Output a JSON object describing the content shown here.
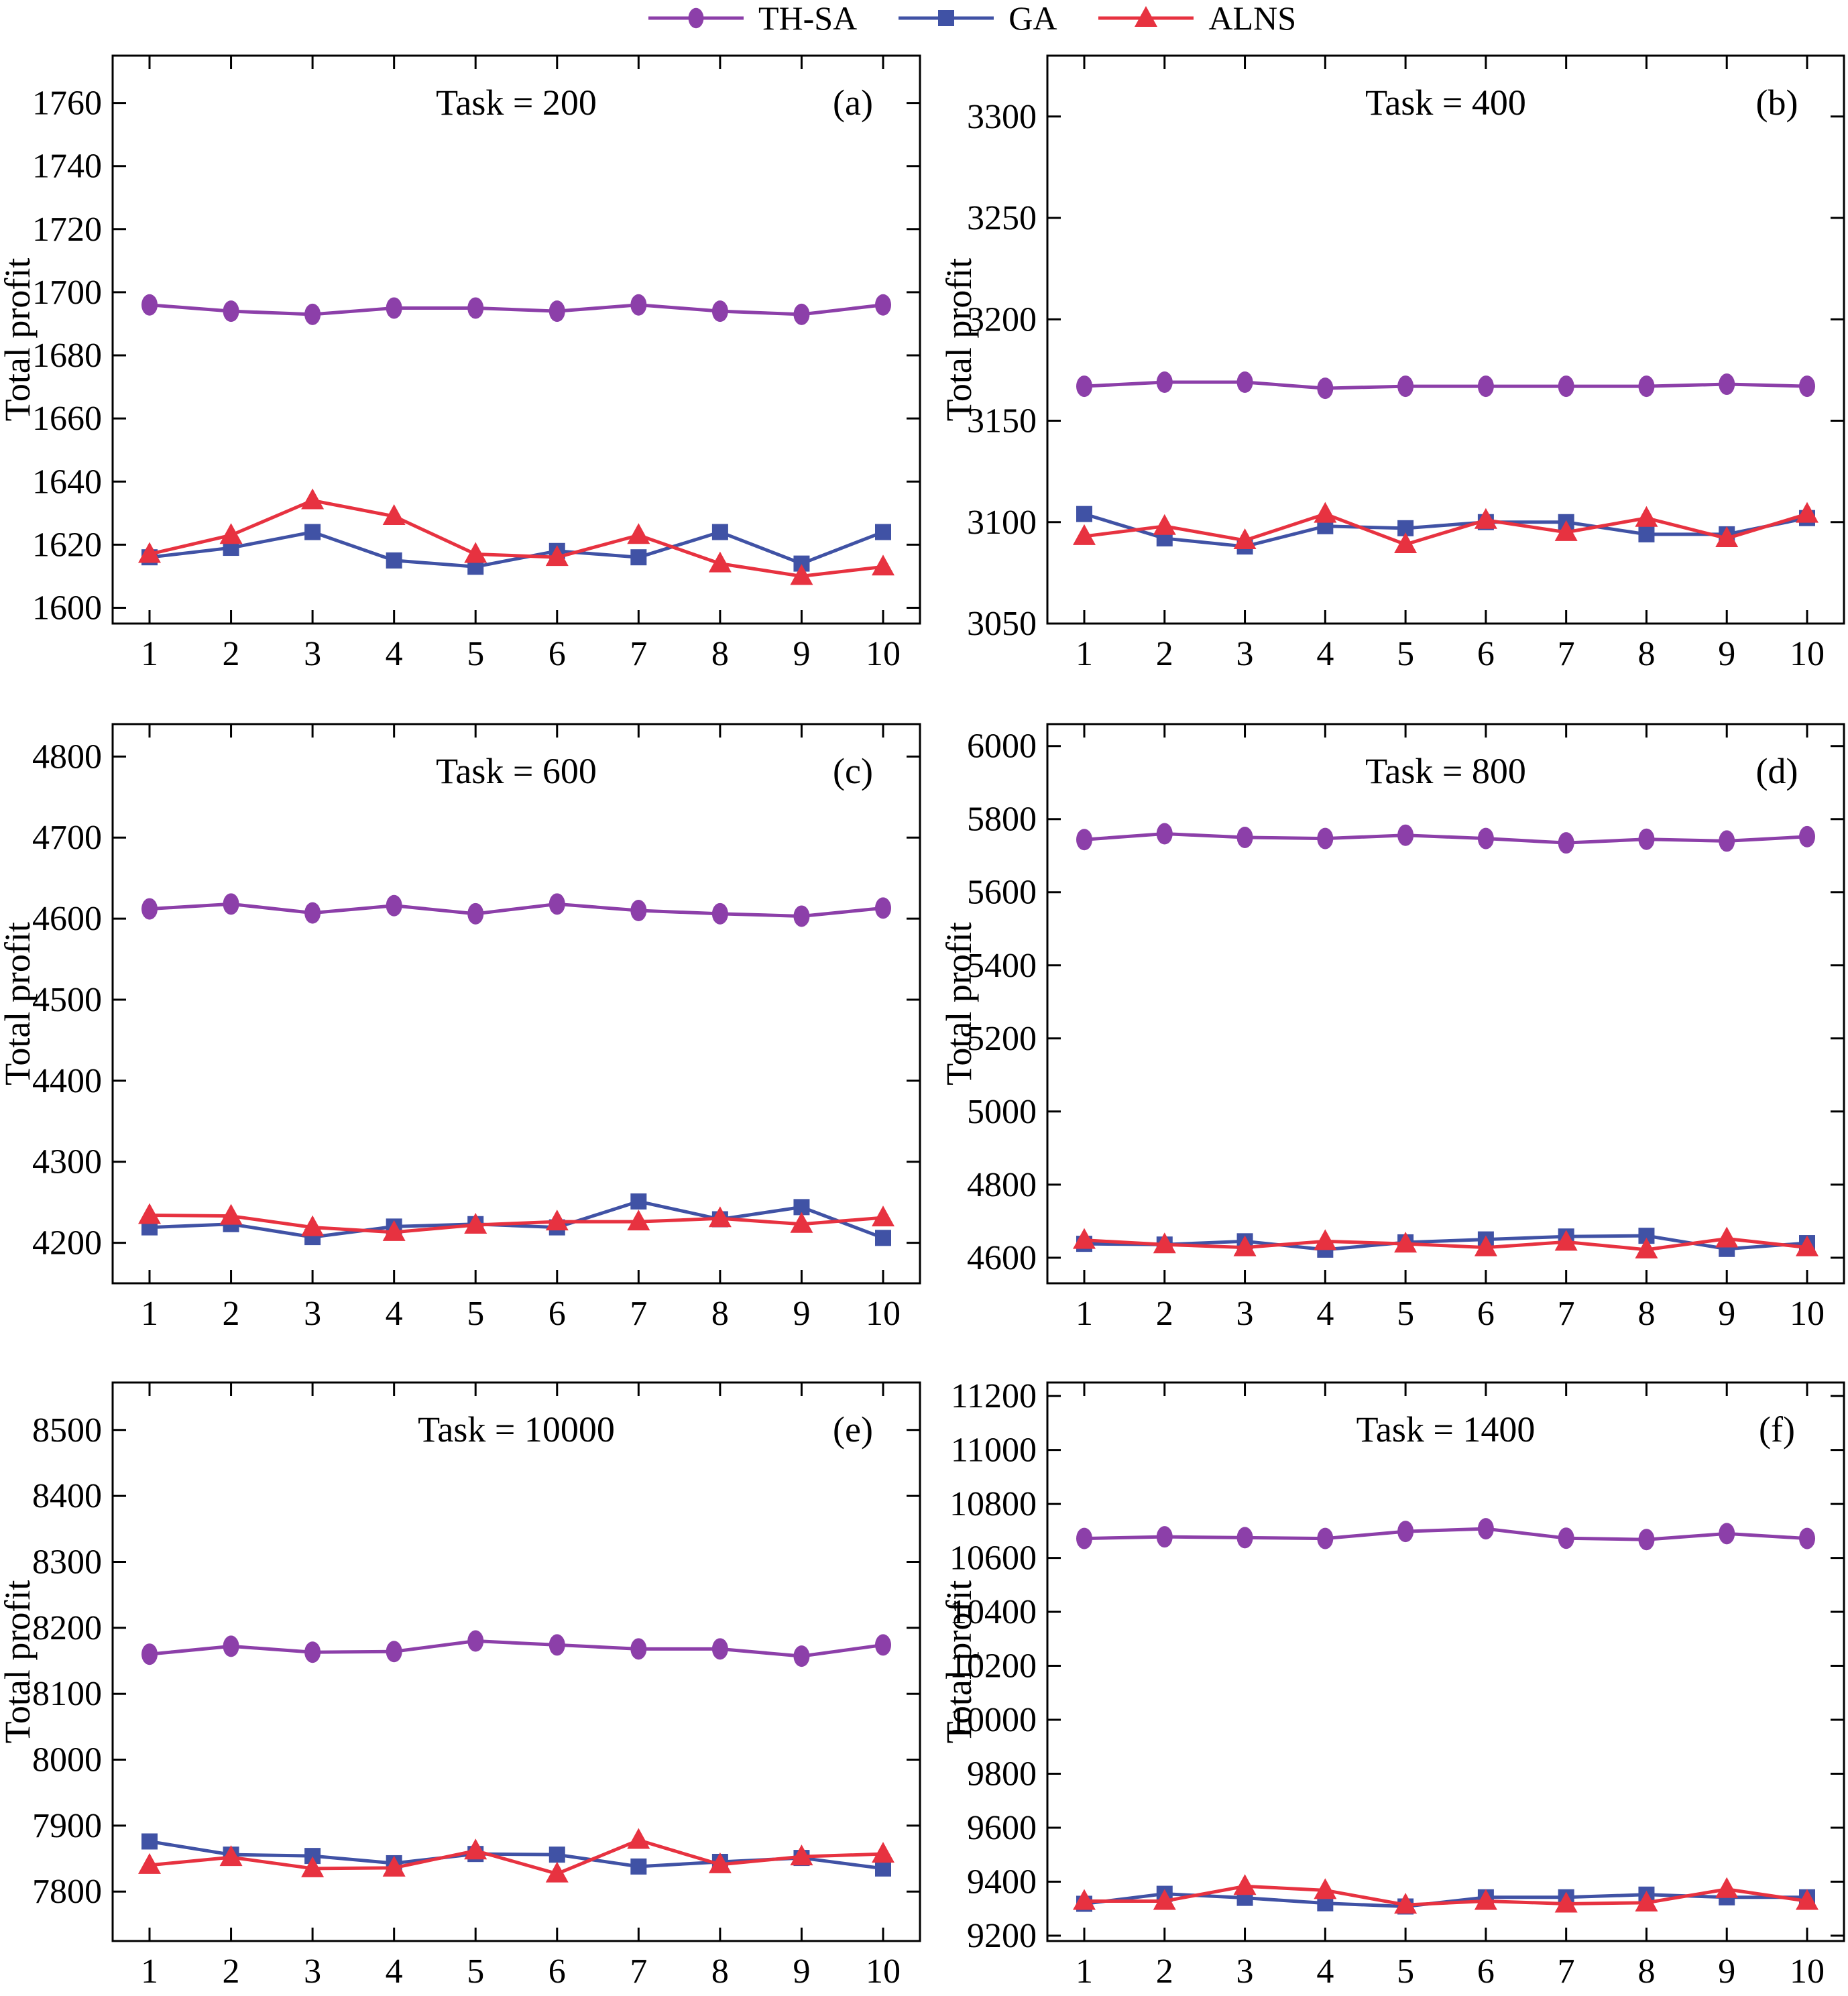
{
  "figure": {
    "y_axis_label": "Total profit",
    "background": "#ffffff",
    "axis_color": "#000000"
  },
  "legend": {
    "items": [
      {
        "label": "TH-SA",
        "marker": "circle",
        "color": "#8C3FA9"
      },
      {
        "label": "GA",
        "marker": "square",
        "color": "#4052A5"
      },
      {
        "label": "ALNS",
        "marker": "triangle",
        "color": "#E73240"
      }
    ]
  },
  "chart_data": [
    {
      "type": "line",
      "panel": "a",
      "title": "Task = 200",
      "corner_label": "(a)",
      "ylabel": "Total profit",
      "x": [
        1,
        2,
        3,
        4,
        5,
        6,
        7,
        8,
        9,
        10
      ],
      "ylim": [
        1595,
        1775
      ],
      "yticks": [
        1600,
        1620,
        1640,
        1660,
        1680,
        1700,
        1720,
        1740,
        1760
      ],
      "grid": false,
      "series": [
        {
          "name": "TH-SA",
          "marker": "circle",
          "color": "#8C3FA9",
          "values": [
            1696,
            1694,
            1693,
            1695,
            1695,
            1694,
            1696,
            1694,
            1693,
            1696
          ]
        },
        {
          "name": "GA",
          "marker": "square",
          "color": "#4052A5",
          "values": [
            1616,
            1619,
            1624,
            1615,
            1613,
            1618,
            1616,
            1624,
            1614,
            1624
          ]
        },
        {
          "name": "ALNS",
          "marker": "triangle",
          "color": "#E73240",
          "values": [
            1617,
            1623,
            1634,
            1629,
            1617,
            1616,
            1623,
            1614,
            1610,
            1613
          ]
        }
      ]
    },
    {
      "type": "line",
      "panel": "b",
      "title": "Task = 400",
      "corner_label": "(b)",
      "ylabel": "Total profit",
      "x": [
        1,
        2,
        3,
        4,
        5,
        6,
        7,
        8,
        9,
        10
      ],
      "ylim": [
        3050,
        3330
      ],
      "yticks": [
        3050,
        3100,
        3150,
        3200,
        3250,
        3300
      ],
      "grid": false,
      "series": [
        {
          "name": "TH-SA",
          "marker": "circle",
          "color": "#8C3FA9",
          "values": [
            3167,
            3169,
            3169,
            3166,
            3167,
            3167,
            3167,
            3167,
            3168,
            3167
          ]
        },
        {
          "name": "GA",
          "marker": "square",
          "color": "#4052A5",
          "values": [
            3104,
            3092,
            3088,
            3098,
            3097,
            3100,
            3100,
            3094,
            3094,
            3102
          ]
        },
        {
          "name": "ALNS",
          "marker": "triangle",
          "color": "#E73240",
          "values": [
            3093,
            3098,
            3091,
            3104,
            3089,
            3101,
            3095,
            3102,
            3092,
            3104
          ]
        }
      ]
    },
    {
      "type": "line",
      "panel": "c",
      "title": "Task = 600",
      "corner_label": "(c)",
      "ylabel": "Total profit",
      "x": [
        1,
        2,
        3,
        4,
        5,
        6,
        7,
        8,
        9,
        10
      ],
      "ylim": [
        4150,
        4840
      ],
      "yticks": [
        4200,
        4300,
        4400,
        4500,
        4600,
        4700,
        4800
      ],
      "grid": false,
      "series": [
        {
          "name": "TH-SA",
          "marker": "circle",
          "color": "#8C3FA9",
          "values": [
            4612,
            4618,
            4607,
            4616,
            4606,
            4618,
            4610,
            4606,
            4603,
            4613
          ]
        },
        {
          "name": "GA",
          "marker": "square",
          "color": "#4052A5",
          "values": [
            4219,
            4223,
            4207,
            4220,
            4223,
            4219,
            4251,
            4229,
            4244,
            4206
          ]
        },
        {
          "name": "ALNS",
          "marker": "triangle",
          "color": "#E73240",
          "values": [
            4234,
            4233,
            4219,
            4213,
            4222,
            4226,
            4226,
            4230,
            4223,
            4231
          ]
        }
      ]
    },
    {
      "type": "line",
      "panel": "d",
      "title": "Task = 800",
      "corner_label": "(d)",
      "ylabel": "Total profit",
      "x": [
        1,
        2,
        3,
        4,
        5,
        6,
        7,
        8,
        9,
        10
      ],
      "ylim": [
        4530,
        6060
      ],
      "yticks": [
        4600,
        4800,
        5000,
        5200,
        5400,
        5600,
        5800,
        6000
      ],
      "grid": false,
      "series": [
        {
          "name": "TH-SA",
          "marker": "circle",
          "color": "#8C3FA9",
          "values": [
            5744,
            5760,
            5750,
            5747,
            5756,
            5747,
            5735,
            5745,
            5740,
            5752
          ]
        },
        {
          "name": "GA",
          "marker": "square",
          "color": "#4052A5",
          "values": [
            4638,
            4636,
            4645,
            4622,
            4642,
            4650,
            4658,
            4660,
            4624,
            4640
          ]
        },
        {
          "name": "ALNS",
          "marker": "triangle",
          "color": "#E73240",
          "values": [
            4648,
            4636,
            4628,
            4645,
            4638,
            4628,
            4643,
            4622,
            4652,
            4628
          ]
        }
      ]
    },
    {
      "type": "line",
      "panel": "e",
      "title": "Task = 10000",
      "corner_label": "(e)",
      "ylabel": "Total profit",
      "x": [
        1,
        2,
        3,
        4,
        5,
        6,
        7,
        8,
        9,
        10
      ],
      "ylim": [
        7725,
        8572
      ],
      "yticks": [
        7800,
        7900,
        8000,
        8100,
        8200,
        8300,
        8400,
        8500
      ],
      "grid": false,
      "series": [
        {
          "name": "TH-SA",
          "marker": "circle",
          "color": "#8C3FA9",
          "values": [
            8160,
            8172,
            8163,
            8164,
            8180,
            8174,
            8168,
            8168,
            8157,
            8174
          ]
        },
        {
          "name": "GA",
          "marker": "square",
          "color": "#4052A5",
          "values": [
            7876,
            7856,
            7854,
            7843,
            7857,
            7856,
            7838,
            7845,
            7851,
            7835
          ]
        },
        {
          "name": "ALNS",
          "marker": "triangle",
          "color": "#E73240",
          "values": [
            7840,
            7852,
            7835,
            7836,
            7862,
            7827,
            7878,
            7841,
            7853,
            7857
          ]
        }
      ]
    },
    {
      "type": "line",
      "panel": "f",
      "title": "Task = 1400",
      "corner_label": "(f)",
      "ylabel": "Total profit",
      "x": [
        1,
        2,
        3,
        4,
        5,
        6,
        7,
        8,
        9,
        10
      ],
      "ylim": [
        9180,
        11250
      ],
      "yticks": [
        9200,
        9400,
        9600,
        9800,
        10000,
        10200,
        10400,
        10600,
        10800,
        11000,
        11200
      ],
      "grid": false,
      "series": [
        {
          "name": "TH-SA",
          "marker": "circle",
          "color": "#8C3FA9",
          "values": [
            10672,
            10678,
            10675,
            10672,
            10698,
            10708,
            10673,
            10668,
            10690,
            10672
          ]
        },
        {
          "name": "GA",
          "marker": "square",
          "color": "#4052A5",
          "values": [
            9318,
            9355,
            9340,
            9320,
            9308,
            9342,
            9342,
            9352,
            9342,
            9342
          ]
        },
        {
          "name": "ALNS",
          "marker": "triangle",
          "color": "#E73240",
          "values": [
            9328,
            9328,
            9383,
            9368,
            9314,
            9328,
            9318,
            9322,
            9372,
            9328
          ]
        }
      ]
    }
  ]
}
